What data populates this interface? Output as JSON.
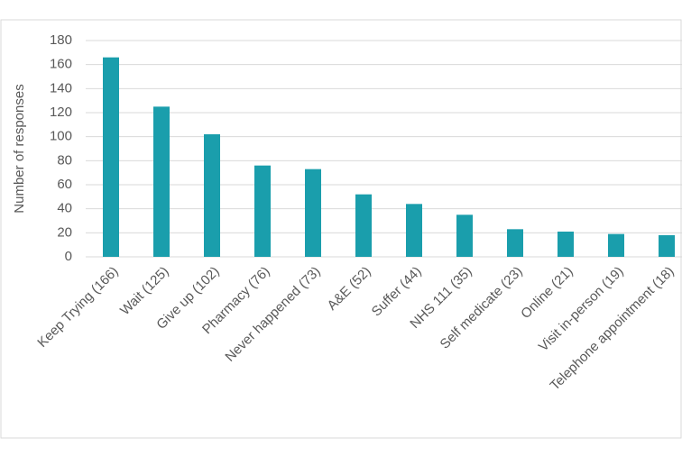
{
  "chart_data": {
    "type": "bar",
    "y_axis_label": "Number of responses",
    "categories": [
      "Keep Trying (166)",
      "Wait (125)",
      "Give up (102)",
      "Pharmacy (76)",
      "Never happened (73)",
      "A&E (52)",
      "Suffer (44)",
      "NHS 111 (35)",
      "Self medicate (23)",
      "Online (21)",
      "Visit in-person (19)",
      "Telephone appointment (18)"
    ],
    "values": [
      166,
      125,
      102,
      76,
      73,
      52,
      44,
      35,
      23,
      21,
      19,
      18
    ],
    "color": "#1a9eac",
    "ylim": [
      0,
      180
    ],
    "yticks": [
      0,
      20,
      40,
      60,
      80,
      100,
      120,
      140,
      160,
      180
    ],
    "grid": true
  }
}
